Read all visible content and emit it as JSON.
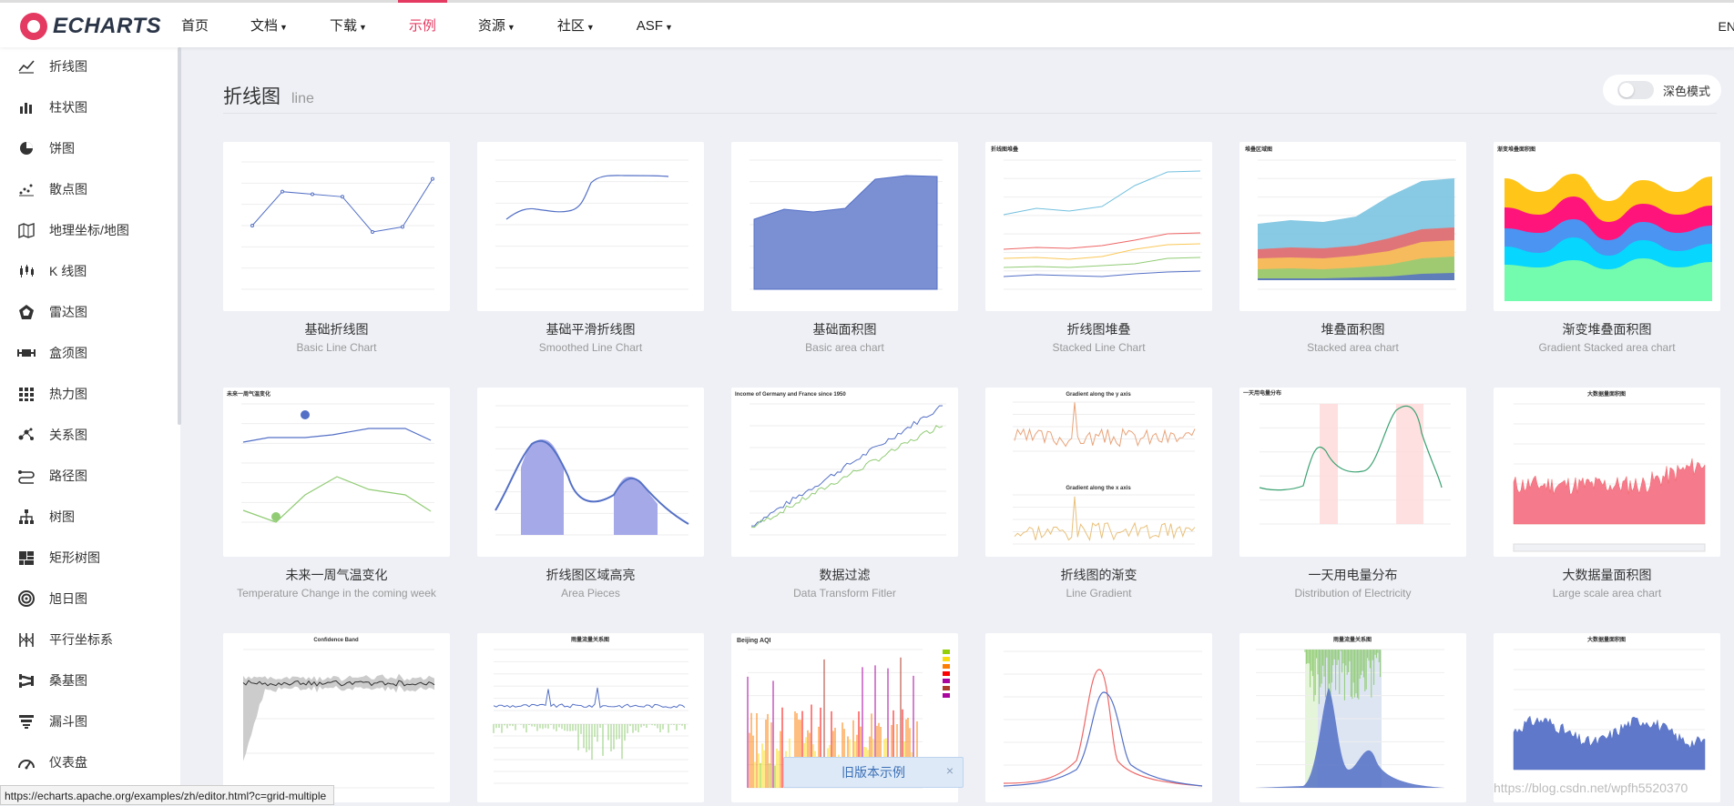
{
  "header": {
    "logo_text": "ECHARTS",
    "nav": [
      {
        "label": "首页",
        "caret": false,
        "active": false
      },
      {
        "label": "文档",
        "caret": true,
        "active": false
      },
      {
        "label": "下载",
        "caret": true,
        "active": false
      },
      {
        "label": "示例",
        "caret": false,
        "active": true
      },
      {
        "label": "资源",
        "caret": true,
        "active": false
      },
      {
        "label": "社区",
        "caret": true,
        "active": false
      },
      {
        "label": "ASF",
        "caret": true,
        "active": false
      }
    ],
    "lang": "EN"
  },
  "sidebar": {
    "items": [
      {
        "label": "折线图",
        "icon": "line-chart-icon"
      },
      {
        "label": "柱状图",
        "icon": "bar-chart-icon"
      },
      {
        "label": "饼图",
        "icon": "pie-chart-icon"
      },
      {
        "label": "散点图",
        "icon": "scatter-chart-icon"
      },
      {
        "label": "地理坐标/地图",
        "icon": "map-icon"
      },
      {
        "label": "K 线图",
        "icon": "candlestick-icon"
      },
      {
        "label": "雷达图",
        "icon": "radar-icon"
      },
      {
        "label": "盒须图",
        "icon": "boxplot-icon"
      },
      {
        "label": "热力图",
        "icon": "heatmap-icon"
      },
      {
        "label": "关系图",
        "icon": "graph-icon"
      },
      {
        "label": "路径图",
        "icon": "lines-icon"
      },
      {
        "label": "树图",
        "icon": "tree-icon"
      },
      {
        "label": "矩形树图",
        "icon": "treemap-icon"
      },
      {
        "label": "旭日图",
        "icon": "sunburst-icon"
      },
      {
        "label": "平行坐标系",
        "icon": "parallel-icon"
      },
      {
        "label": "桑基图",
        "icon": "sankey-icon"
      },
      {
        "label": "漏斗图",
        "icon": "funnel-icon"
      },
      {
        "label": "仪表盘",
        "icon": "gauge-icon"
      }
    ]
  },
  "main": {
    "title": "折线图",
    "title_sub": "line",
    "dark_mode_label": "深色模式",
    "dark_mode_on": false,
    "cards": [
      {
        "title": "基础折线图",
        "subtitle": "Basic Line Chart",
        "thumb": "basic-line"
      },
      {
        "title": "基础平滑折线图",
        "subtitle": "Smoothed Line Chart",
        "thumb": "smooth-line"
      },
      {
        "title": "基础面积图",
        "subtitle": "Basic area chart",
        "thumb": "basic-area"
      },
      {
        "title": "折线图堆叠",
        "subtitle": "Stacked Line Chart",
        "thumb": "stacked-line"
      },
      {
        "title": "堆叠面积图",
        "subtitle": "Stacked area chart",
        "thumb": "stacked-area"
      },
      {
        "title": "渐变堆叠面积图",
        "subtitle": "Gradient Stacked area chart",
        "thumb": "gradient-stacked"
      },
      {
        "title": "未来一周气温变化",
        "subtitle": "Temperature Change in the coming week",
        "thumb": "temperature"
      },
      {
        "title": "折线图区域高亮",
        "subtitle": "Area Pieces",
        "thumb": "area-pieces"
      },
      {
        "title": "数据过滤",
        "subtitle": "Data Transform Fitler",
        "thumb": "data-transform"
      },
      {
        "title": "折线图的渐变",
        "subtitle": "Line Gradient",
        "thumb": "line-gradient"
      },
      {
        "title": "一天用电量分布",
        "subtitle": "Distribution of Electricity",
        "thumb": "electricity"
      },
      {
        "title": "大数据量面积图",
        "subtitle": "Large scale area chart",
        "thumb": "large-area"
      },
      {
        "title": "",
        "subtitle": "",
        "thumb": "confidence-band"
      },
      {
        "title": "",
        "subtitle": "",
        "thumb": "rainfall"
      },
      {
        "title": "",
        "subtitle": "",
        "thumb": "beijing-aqi"
      },
      {
        "title": "",
        "subtitle": "",
        "thumb": "multiple-x"
      },
      {
        "title": "",
        "subtitle": "",
        "thumb": "rainfall-2"
      },
      {
        "title": "",
        "subtitle": "",
        "thumb": "large-area-2"
      }
    ],
    "thumb_texts": {
      "stacked-line": "折线图堆叠",
      "stacked-area": "堆叠区域图",
      "gradient-stacked": "渐变堆叠面积图",
      "temperature": "未来一周气温变化",
      "data-transform": "Income of Germany and France since 1950",
      "line-gradient-1": "Gradient along the y axis",
      "line-gradient-2": "Gradient along the x axis",
      "electricity": "一天用电量分布",
      "large-area": "大数据量面积图",
      "confidence-band": "Confidence Band",
      "rainfall": "雨量流量关系图",
      "beijing-aqi": "Beijing AQI",
      "rainfall-2": "雨量流量关系图",
      "large-area-2": "大数据量面积图"
    }
  },
  "overlays": {
    "status_url": "https://echarts.apache.org/examples/zh/editor.html?c=grid-multiple",
    "old_version": "旧版本示例",
    "old_version_close": "×",
    "watermark": "https://blog.csdn.net/wpfh5520370"
  },
  "colors": {
    "accent": "#e43961",
    "series_blue": "#5470c6",
    "series_green": "#91cc75",
    "series_yellow": "#fac858",
    "series_red": "#ee6666",
    "series_cyan": "#73c0de"
  }
}
